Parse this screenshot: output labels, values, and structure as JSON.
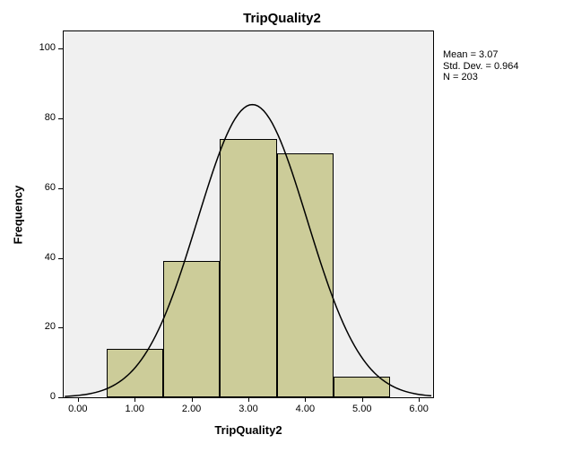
{
  "chart": {
    "type": "histogram-with-normal-curve",
    "title": "TripQuality2",
    "xlabel": "TripQuality2",
    "ylabel": "Frequency",
    "background_color": "#f0f0f0",
    "figure_background": "#ffffff",
    "border_color": "#000000",
    "bar_fill": "#cccc99",
    "bar_border": "#000000",
    "curve_color": "#000000",
    "curve_width": 1.5,
    "title_fontsize": 15,
    "label_fontsize": 13,
    "tick_fontsize": 11,
    "stats_fontsize": 11,
    "xlim": [
      -0.25,
      6.25
    ],
    "ylim": [
      0,
      105
    ],
    "x_ticks": [
      0,
      1,
      2,
      3,
      4,
      5,
      6
    ],
    "x_ticklabels": [
      "0.00",
      "1.00",
      "2.00",
      "3.00",
      "4.00",
      "5.00",
      "6.00"
    ],
    "y_ticks": [
      0,
      20,
      40,
      60,
      80,
      100
    ],
    "y_ticklabels": [
      "0",
      "20",
      "40",
      "60",
      "80",
      "100"
    ],
    "bin_width": 1.0,
    "bin_centers": [
      1,
      2,
      3,
      4,
      5
    ],
    "bin_edges": [
      0.5,
      1.5,
      2.5,
      3.5,
      4.5,
      5.5
    ],
    "frequencies": [
      14,
      39,
      74,
      70,
      6
    ],
    "normal_curve": {
      "mean": 3.07,
      "std_dev": 0.964,
      "n": 203,
      "peak_value": 84
    },
    "stats_text": {
      "mean": "Mean = 3.07",
      "std": "Std. Dev. = 0.964",
      "n": "N = 203"
    }
  }
}
